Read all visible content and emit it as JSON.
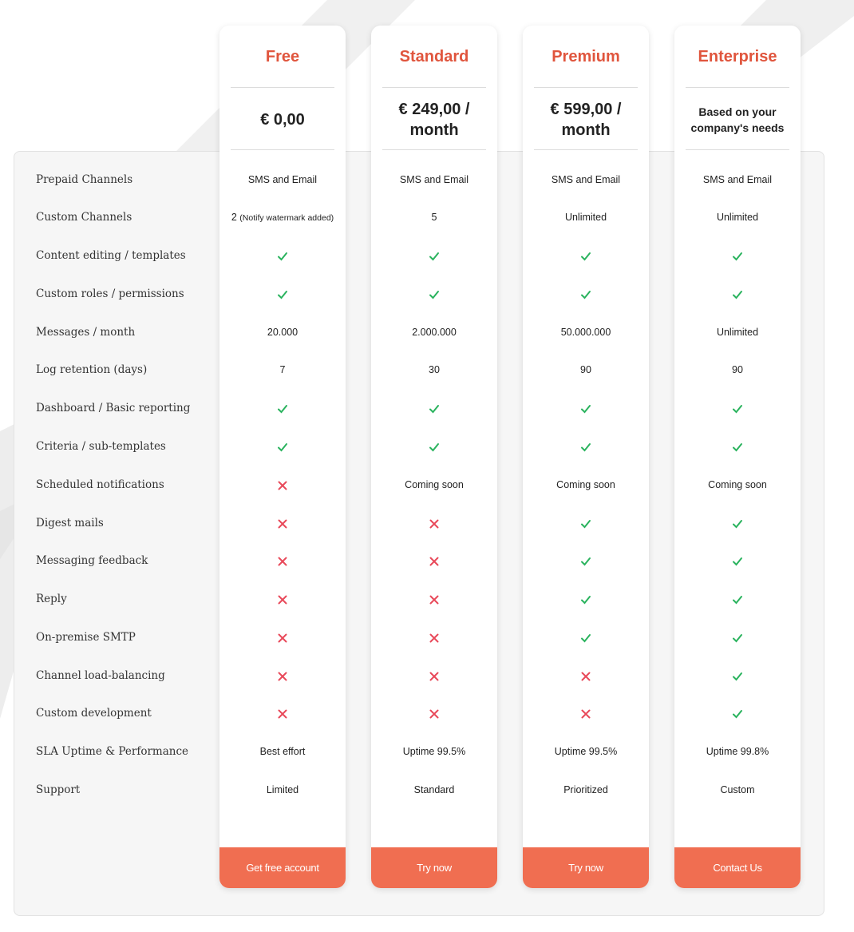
{
  "colors": {
    "accent": "#e0553d",
    "button": "#f06e51",
    "check": "#2ab35e",
    "cross": "#e8495a",
    "panel": "#f6f6f6"
  },
  "features": [
    "Prepaid Channels",
    "Custom Channels",
    "Content editing / templates",
    "Custom roles / permissions",
    "Messages / month",
    "Log retention (days)",
    "Dashboard / Basic reporting",
    "Criteria / sub-templates",
    "Scheduled notifications",
    "Digest mails",
    "Messaging feedback",
    "Reply",
    "On-premise SMTP",
    "Channel load-balancing",
    "Custom development",
    "SLA Uptime & Performance",
    "Support"
  ],
  "plans": [
    {
      "name": "Free",
      "price": "€ 0,00",
      "button": "Get free account",
      "values": [
        {
          "text": "SMS and Email"
        },
        {
          "text": "2",
          "note": "(Notify watermark added)"
        },
        {
          "icon": "check-icon"
        },
        {
          "icon": "check-icon"
        },
        {
          "text": "20.000"
        },
        {
          "text": "7"
        },
        {
          "icon": "check-icon"
        },
        {
          "icon": "check-icon"
        },
        {
          "icon": "cross-icon"
        },
        {
          "icon": "cross-icon"
        },
        {
          "icon": "cross-icon"
        },
        {
          "icon": "cross-icon"
        },
        {
          "icon": "cross-icon"
        },
        {
          "icon": "cross-icon"
        },
        {
          "icon": "cross-icon"
        },
        {
          "text": "Best effort"
        },
        {
          "text": "Limited"
        }
      ]
    },
    {
      "name": "Standard",
      "price": "€ 249,00 / month",
      "button": "Try now",
      "values": [
        {
          "text": "SMS and Email"
        },
        {
          "text": "5"
        },
        {
          "icon": "check-icon"
        },
        {
          "icon": "check-icon"
        },
        {
          "text": "2.000.000"
        },
        {
          "text": "30"
        },
        {
          "icon": "check-icon"
        },
        {
          "icon": "check-icon"
        },
        {
          "text": "Coming soon"
        },
        {
          "icon": "cross-icon"
        },
        {
          "icon": "cross-icon"
        },
        {
          "icon": "cross-icon"
        },
        {
          "icon": "cross-icon"
        },
        {
          "icon": "cross-icon"
        },
        {
          "icon": "cross-icon"
        },
        {
          "text": "Uptime 99.5%"
        },
        {
          "text": "Standard"
        }
      ]
    },
    {
      "name": "Premium",
      "price": "€ 599,00 / month",
      "button": "Try now",
      "values": [
        {
          "text": "SMS and Email"
        },
        {
          "text": "Unlimited"
        },
        {
          "icon": "check-icon"
        },
        {
          "icon": "check-icon"
        },
        {
          "text": "50.000.000"
        },
        {
          "text": "90"
        },
        {
          "icon": "check-icon"
        },
        {
          "icon": "check-icon"
        },
        {
          "text": "Coming soon"
        },
        {
          "icon": "check-icon"
        },
        {
          "icon": "check-icon"
        },
        {
          "icon": "check-icon"
        },
        {
          "icon": "check-icon"
        },
        {
          "icon": "cross-icon"
        },
        {
          "icon": "cross-icon"
        },
        {
          "text": "Uptime 99.5%"
        },
        {
          "text": "Prioritized"
        }
      ]
    },
    {
      "name": "Enterprise",
      "price": "Based on your company's needs",
      "button": "Contact Us",
      "values": [
        {
          "text": "SMS and Email"
        },
        {
          "text": "Unlimited"
        },
        {
          "icon": "check-icon"
        },
        {
          "icon": "check-icon"
        },
        {
          "text": "Unlimited"
        },
        {
          "text": "90"
        },
        {
          "icon": "check-icon"
        },
        {
          "icon": "check-icon"
        },
        {
          "text": "Coming soon"
        },
        {
          "icon": "check-icon"
        },
        {
          "icon": "check-icon"
        },
        {
          "icon": "check-icon"
        },
        {
          "icon": "check-icon"
        },
        {
          "icon": "check-icon"
        },
        {
          "icon": "check-icon"
        },
        {
          "text": "Uptime 99.8%"
        },
        {
          "text": "Custom"
        }
      ]
    }
  ]
}
